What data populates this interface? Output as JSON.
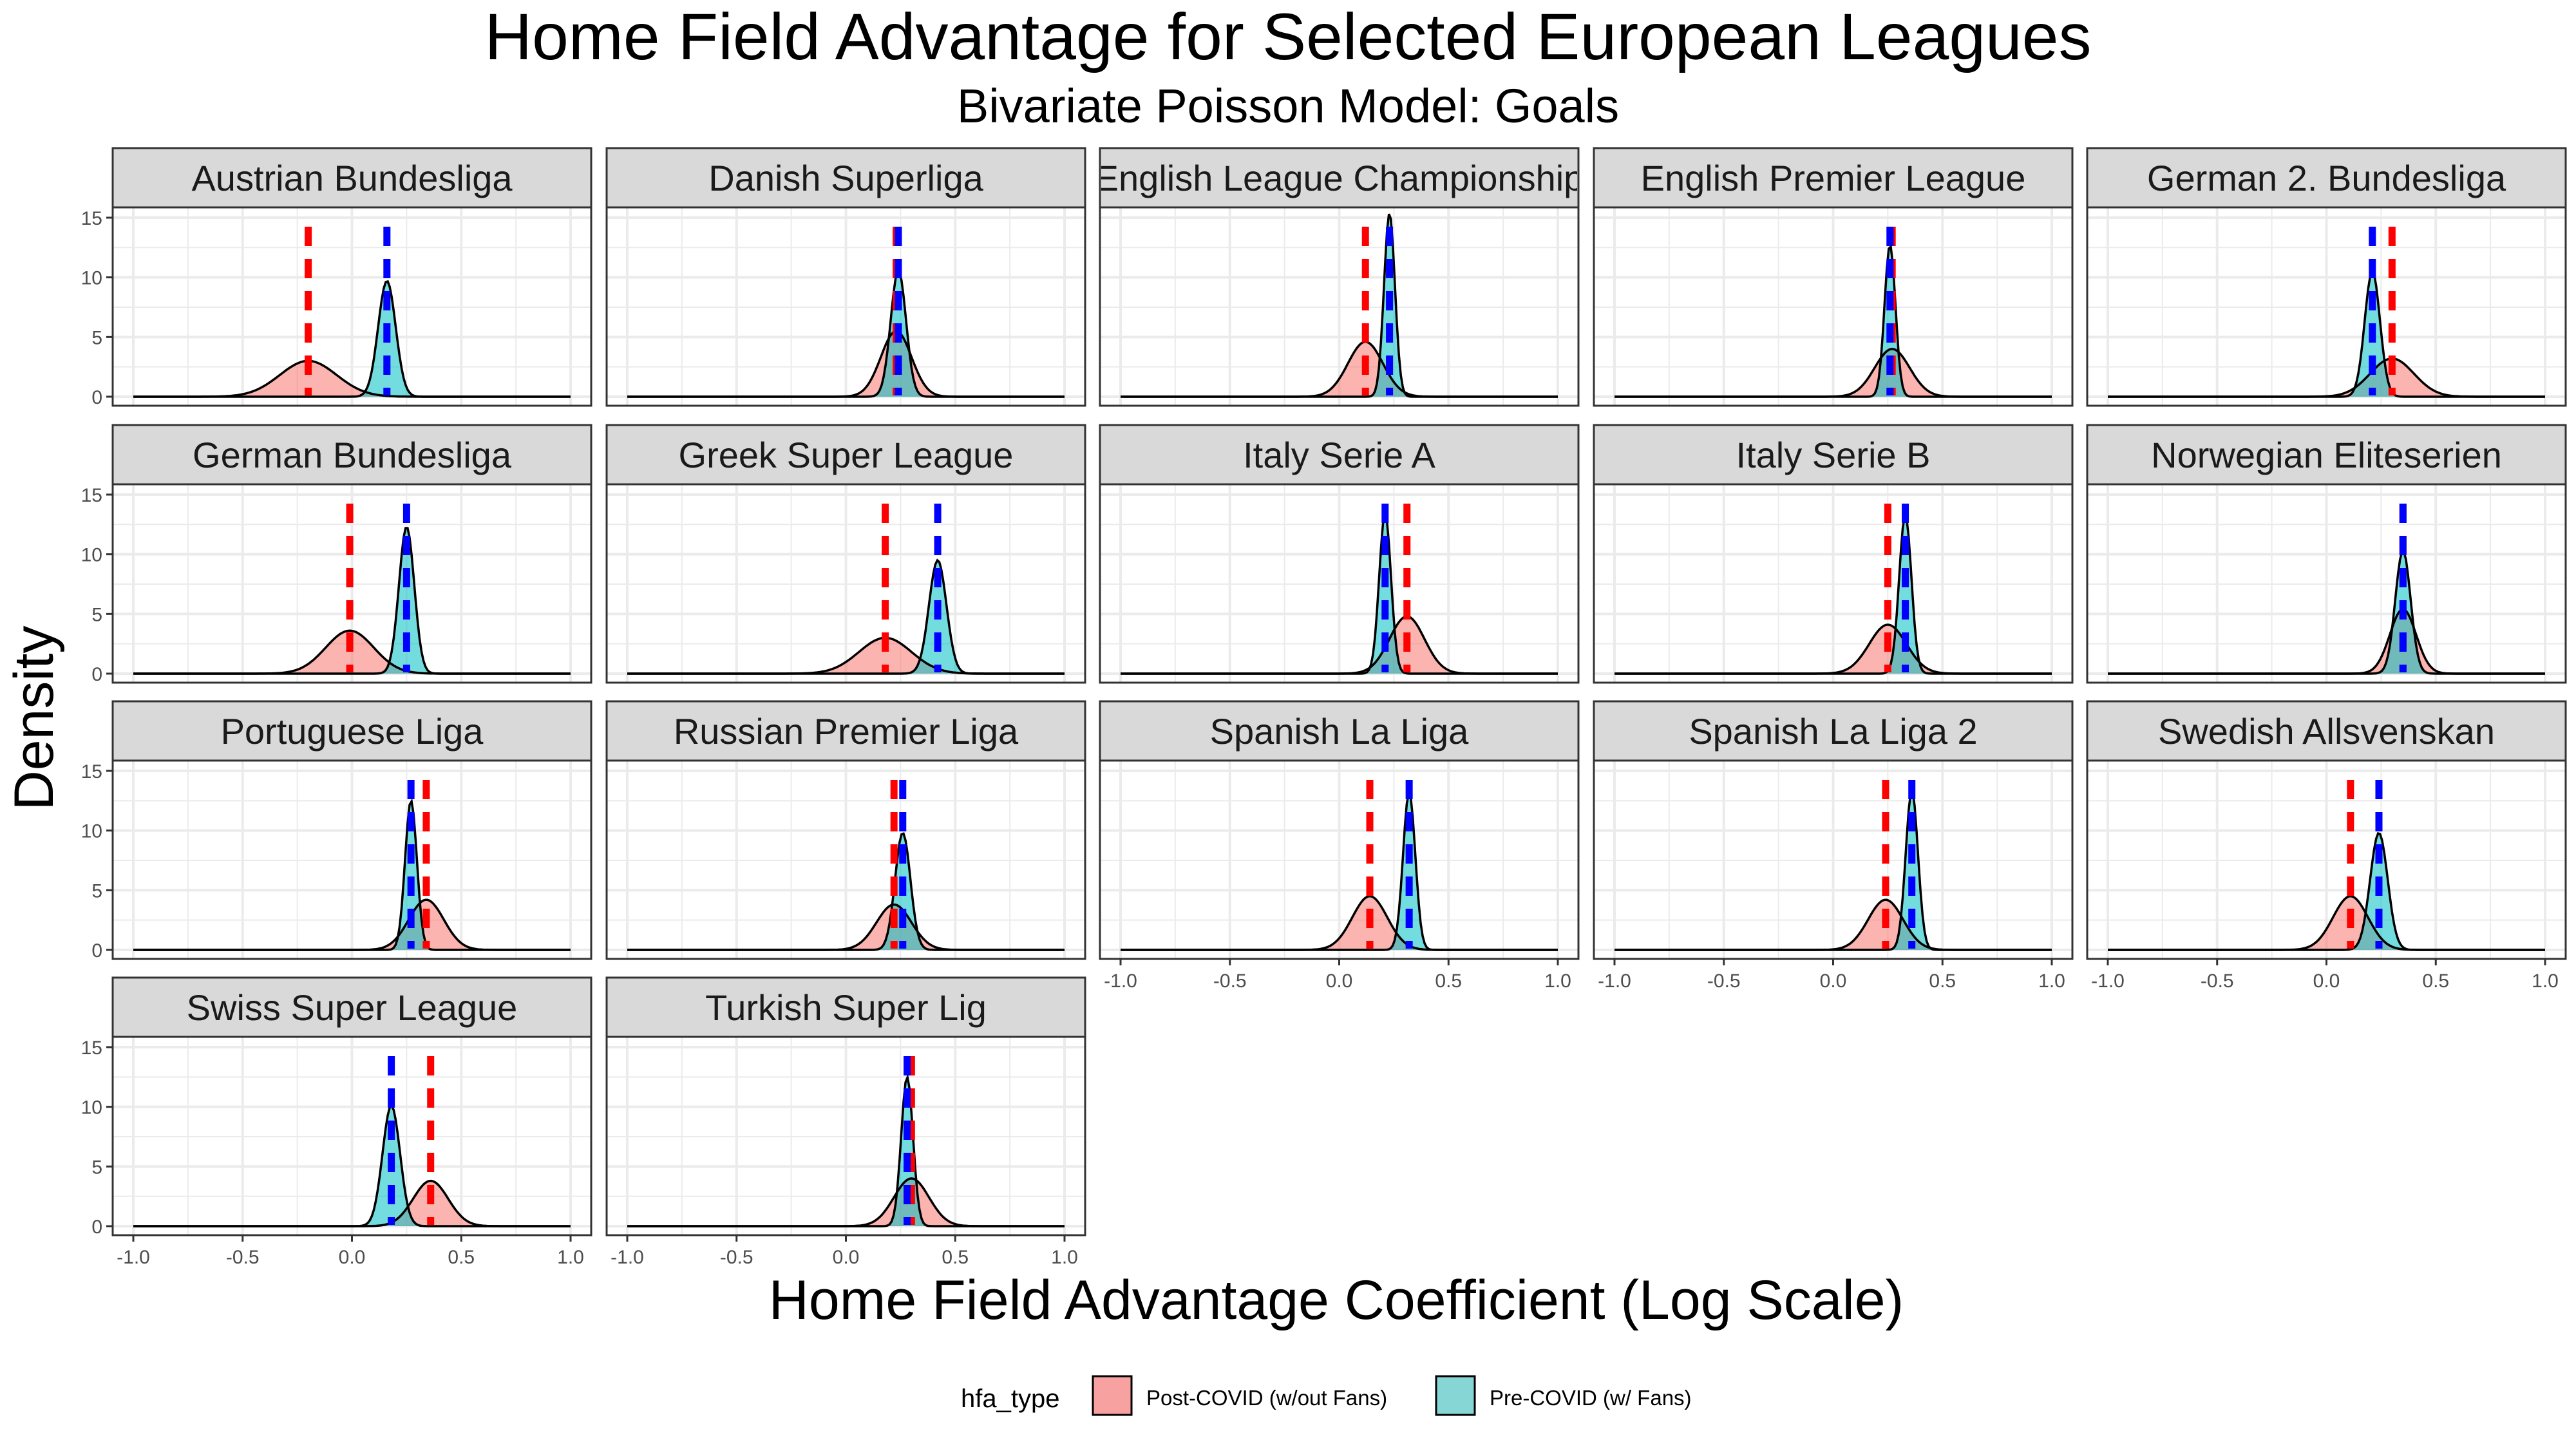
{
  "chart_data": {
    "type": "area",
    "title": "Home Field Advantage for Selected European Leagues",
    "subtitle": "Bivariate Poisson Model: Goals",
    "xlabel": "Home Field Advantage Coefficient (Log Scale)",
    "ylabel": "Density",
    "xlim": [
      -1.0,
      1.0
    ],
    "ylim": [
      0,
      15
    ],
    "x_ticks": [
      -1.0,
      -0.5,
      0.0,
      0.5,
      1.0
    ],
    "x_tick_labels": [
      "-1.0",
      "-0.5",
      "0.0",
      "0.5",
      "1.0"
    ],
    "y_ticks": [
      0,
      5,
      10,
      15
    ],
    "y_tick_labels": [
      "0",
      "5",
      "10",
      "15"
    ],
    "grid": true,
    "legend": {
      "title": "hfa_type",
      "position": "bottom",
      "entries": [
        {
          "label": "Post-COVID (w/out Fans)",
          "fill": "#F8A1A1",
          "line": "#FF0000"
        },
        {
          "label": "Pre-COVID (w/ Fans)",
          "fill": "#86D6D6",
          "line": "#0000FF"
        }
      ]
    },
    "colors": {
      "post_fill": "#F8766D",
      "pre_fill": "#00BFC4",
      "post_line": "#FF0000",
      "pre_line": "#0000FF",
      "strip_bg": "#D9D9D9",
      "grid": "#EBEBEB"
    },
    "panels": [
      {
        "league": "Austrian Bundesliga",
        "post": {
          "mean": -0.2,
          "sd": 0.13,
          "peak": 3.0
        },
        "pre": {
          "mean": 0.16,
          "sd": 0.04,
          "peak": 9.7
        }
      },
      {
        "league": "Danish Superliga",
        "post": {
          "mean": 0.23,
          "sd": 0.07,
          "peak": 5.5
        },
        "pre": {
          "mean": 0.24,
          "sd": 0.035,
          "peak": 10.6
        }
      },
      {
        "league": "English League Championship",
        "post": {
          "mean": 0.12,
          "sd": 0.08,
          "peak": 4.6
        },
        "pre": {
          "mean": 0.23,
          "sd": 0.025,
          "peak": 15.4
        }
      },
      {
        "league": "English Premier League",
        "post": {
          "mean": 0.27,
          "sd": 0.08,
          "peak": 4.0
        },
        "pre": {
          "mean": 0.26,
          "sd": 0.025,
          "peak": 12.7
        }
      },
      {
        "league": "German 2. Bundesliga",
        "post": {
          "mean": 0.3,
          "sd": 0.1,
          "peak": 3.2
        },
        "pre": {
          "mean": 0.21,
          "sd": 0.035,
          "peak": 10.5
        }
      },
      {
        "league": "German Bundesliga",
        "post": {
          "mean": -0.01,
          "sd": 0.11,
          "peak": 3.6
        },
        "pre": {
          "mean": 0.25,
          "sd": 0.035,
          "peak": 12.3
        }
      },
      {
        "league": "Greek Super League",
        "post": {
          "mean": 0.18,
          "sd": 0.12,
          "peak": 3.0
        },
        "pre": {
          "mean": 0.42,
          "sd": 0.04,
          "peak": 9.5
        }
      },
      {
        "league": "Italy Serie A",
        "post": {
          "mean": 0.31,
          "sd": 0.08,
          "peak": 4.8
        },
        "pre": {
          "mean": 0.21,
          "sd": 0.027,
          "peak": 13.4
        }
      },
      {
        "league": "Italy Serie B",
        "post": {
          "mean": 0.25,
          "sd": 0.085,
          "peak": 4.1
        },
        "pre": {
          "mean": 0.33,
          "sd": 0.028,
          "peak": 13.3
        }
      },
      {
        "league": "Norwegian Eliteserien",
        "post": {
          "mean": 0.35,
          "sd": 0.06,
          "peak": 5.4
        },
        "pre": {
          "mean": 0.35,
          "sd": 0.035,
          "peak": 10.3
        }
      },
      {
        "league": "Portuguese Liga",
        "post": {
          "mean": 0.34,
          "sd": 0.08,
          "peak": 4.2
        },
        "pre": {
          "mean": 0.27,
          "sd": 0.027,
          "peak": 12.5
        }
      },
      {
        "league": "Russian Premier Liga",
        "post": {
          "mean": 0.22,
          "sd": 0.08,
          "peak": 3.8
        },
        "pre": {
          "mean": 0.26,
          "sd": 0.035,
          "peak": 9.8
        }
      },
      {
        "league": "Spanish La Liga",
        "post": {
          "mean": 0.14,
          "sd": 0.08,
          "peak": 4.5
        },
        "pre": {
          "mean": 0.32,
          "sd": 0.028,
          "peak": 13.2
        }
      },
      {
        "league": "Spanish La Liga 2",
        "post": {
          "mean": 0.24,
          "sd": 0.08,
          "peak": 4.2
        },
        "pre": {
          "mean": 0.36,
          "sd": 0.028,
          "peak": 13.4
        }
      },
      {
        "league": "Swedish Allsvenskan",
        "post": {
          "mean": 0.11,
          "sd": 0.08,
          "peak": 4.5
        },
        "pre": {
          "mean": 0.24,
          "sd": 0.04,
          "peak": 9.8
        }
      },
      {
        "league": "Swiss Super League",
        "post": {
          "mean": 0.36,
          "sd": 0.08,
          "peak": 3.8
        },
        "pre": {
          "mean": 0.18,
          "sd": 0.04,
          "peak": 10.1
        }
      },
      {
        "league": "Turkish Super Lig",
        "post": {
          "mean": 0.3,
          "sd": 0.08,
          "peak": 4.0
        },
        "pre": {
          "mean": 0.28,
          "sd": 0.027,
          "peak": 12.5
        }
      }
    ]
  }
}
